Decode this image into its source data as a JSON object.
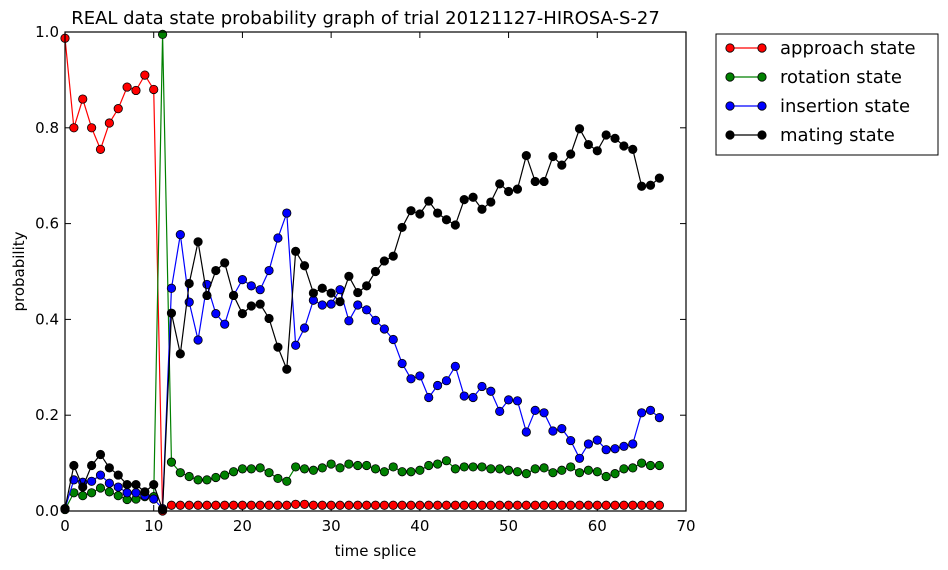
{
  "chart_data": {
    "type": "line",
    "title": "REAL data state probability graph of trial 20121127-HIROSA-S-27",
    "xlabel": "time splice",
    "ylabel": "probability",
    "xlim": [
      0,
      70
    ],
    "ylim": [
      0,
      1
    ],
    "xticks": [
      0,
      10,
      20,
      30,
      40,
      50,
      60,
      70
    ],
    "yticks": [
      0.0,
      0.2,
      0.4,
      0.6,
      0.8,
      1.0
    ],
    "xtick_labels": [
      "0",
      "10",
      "20",
      "30",
      "40",
      "50",
      "60",
      "70"
    ],
    "ytick_labels": [
      "0.0",
      "0.2",
      "0.4",
      "0.6",
      "0.8",
      "1.0"
    ],
    "grid": false,
    "legend_position": "outside-top-right",
    "series": [
      {
        "name": "approach state",
        "color": "#ff0000",
        "x": [
          0,
          1,
          2,
          3,
          4,
          5,
          6,
          7,
          8,
          9,
          10,
          11,
          12,
          13,
          14,
          15,
          16,
          17,
          18,
          19,
          20,
          21,
          22,
          23,
          24,
          25,
          26,
          27,
          28,
          29,
          30,
          31,
          32,
          33,
          34,
          35,
          36,
          37,
          38,
          39,
          40,
          41,
          42,
          43,
          44,
          45,
          46,
          47,
          48,
          49,
          50,
          51,
          52,
          53,
          54,
          55,
          56,
          57,
          58,
          59,
          60,
          61,
          62,
          63,
          64,
          65,
          66,
          67
        ],
        "y": [
          0.987,
          0.8,
          0.86,
          0.8,
          0.755,
          0.81,
          0.84,
          0.885,
          0.878,
          0.91,
          0.88,
          0.0,
          0.012,
          0.012,
          0.012,
          0.012,
          0.012,
          0.012,
          0.012,
          0.012,
          0.012,
          0.012,
          0.012,
          0.012,
          0.012,
          0.012,
          0.014,
          0.014,
          0.012,
          0.012,
          0.012,
          0.012,
          0.012,
          0.012,
          0.012,
          0.012,
          0.012,
          0.012,
          0.012,
          0.012,
          0.012,
          0.012,
          0.012,
          0.012,
          0.012,
          0.012,
          0.012,
          0.012,
          0.012,
          0.012,
          0.012,
          0.012,
          0.012,
          0.012,
          0.012,
          0.012,
          0.012,
          0.012,
          0.012,
          0.012,
          0.012,
          0.012,
          0.012,
          0.012,
          0.012,
          0.012,
          0.012,
          0.012
        ]
      },
      {
        "name": "rotation state",
        "color": "#008000",
        "x": [
          0,
          1,
          2,
          3,
          4,
          5,
          6,
          7,
          8,
          9,
          10,
          11,
          12,
          13,
          14,
          15,
          16,
          17,
          18,
          19,
          20,
          21,
          22,
          23,
          24,
          25,
          26,
          27,
          28,
          29,
          30,
          31,
          32,
          33,
          34,
          35,
          36,
          37,
          38,
          39,
          40,
          41,
          42,
          43,
          44,
          45,
          46,
          47,
          48,
          49,
          50,
          51,
          52,
          53,
          54,
          55,
          56,
          57,
          58,
          59,
          60,
          61,
          62,
          63,
          64,
          65,
          66,
          67
        ],
        "y": [
          0.003,
          0.038,
          0.032,
          0.038,
          0.048,
          0.04,
          0.032,
          0.024,
          0.025,
          0.03,
          0.03,
          0.995,
          0.102,
          0.08,
          0.072,
          0.065,
          0.065,
          0.07,
          0.075,
          0.082,
          0.088,
          0.088,
          0.09,
          0.08,
          0.068,
          0.062,
          0.092,
          0.088,
          0.085,
          0.09,
          0.098,
          0.09,
          0.098,
          0.095,
          0.095,
          0.088,
          0.082,
          0.092,
          0.082,
          0.082,
          0.085,
          0.095,
          0.098,
          0.105,
          0.088,
          0.092,
          0.092,
          0.092,
          0.088,
          0.088,
          0.085,
          0.082,
          0.078,
          0.088,
          0.09,
          0.08,
          0.085,
          0.092,
          0.08,
          0.085,
          0.082,
          0.072,
          0.078,
          0.088,
          0.09,
          0.1,
          0.095,
          0.095
        ]
      },
      {
        "name": "insertion state",
        "color": "#0000ff",
        "x": [
          0,
          1,
          2,
          3,
          4,
          5,
          6,
          7,
          8,
          9,
          10,
          11,
          12,
          13,
          14,
          15,
          16,
          17,
          18,
          19,
          20,
          21,
          22,
          23,
          24,
          25,
          26,
          27,
          28,
          29,
          30,
          31,
          32,
          33,
          34,
          35,
          36,
          37,
          38,
          39,
          40,
          41,
          42,
          43,
          44,
          45,
          46,
          47,
          48,
          49,
          50,
          51,
          52,
          53,
          54,
          55,
          56,
          57,
          58,
          59,
          60,
          61,
          62,
          63,
          64,
          65,
          66,
          67
        ],
        "y": [
          0.005,
          0.065,
          0.06,
          0.062,
          0.075,
          0.058,
          0.05,
          0.038,
          0.038,
          0.032,
          0.025,
          0.005,
          0.465,
          0.577,
          0.436,
          0.357,
          0.473,
          0.412,
          0.39,
          0.45,
          0.483,
          0.47,
          0.462,
          0.502,
          0.57,
          0.622,
          0.346,
          0.382,
          0.44,
          0.43,
          0.432,
          0.462,
          0.397,
          0.43,
          0.42,
          0.398,
          0.38,
          0.358,
          0.308,
          0.276,
          0.282,
          0.237,
          0.262,
          0.272,
          0.302,
          0.24,
          0.237,
          0.26,
          0.25,
          0.208,
          0.232,
          0.23,
          0.165,
          0.21,
          0.205,
          0.167,
          0.172,
          0.147,
          0.11,
          0.14,
          0.148,
          0.128,
          0.13,
          0.135,
          0.14,
          0.205,
          0.21,
          0.195
        ]
      },
      {
        "name": "mating state",
        "color": "#000000",
        "x": [
          0,
          1,
          2,
          3,
          4,
          5,
          6,
          7,
          8,
          9,
          10,
          11,
          12,
          13,
          14,
          15,
          16,
          17,
          18,
          19,
          20,
          21,
          22,
          23,
          24,
          25,
          26,
          27,
          28,
          29,
          30,
          31,
          32,
          33,
          34,
          35,
          36,
          37,
          38,
          39,
          40,
          41,
          42,
          43,
          44,
          45,
          46,
          47,
          48,
          49,
          50,
          51,
          52,
          53,
          54,
          55,
          56,
          57,
          58,
          59,
          60,
          61,
          62,
          63,
          64,
          65,
          66,
          67
        ],
        "y": [
          0.005,
          0.095,
          0.05,
          0.095,
          0.118,
          0.09,
          0.075,
          0.055,
          0.055,
          0.04,
          0.055,
          0.003,
          0.413,
          0.328,
          0.475,
          0.562,
          0.45,
          0.502,
          0.518,
          0.45,
          0.412,
          0.428,
          0.432,
          0.402,
          0.342,
          0.296,
          0.542,
          0.512,
          0.455,
          0.465,
          0.455,
          0.437,
          0.49,
          0.456,
          0.47,
          0.5,
          0.522,
          0.532,
          0.592,
          0.627,
          0.62,
          0.647,
          0.622,
          0.608,
          0.597,
          0.65,
          0.655,
          0.63,
          0.645,
          0.683,
          0.667,
          0.672,
          0.742,
          0.688,
          0.688,
          0.74,
          0.722,
          0.745,
          0.798,
          0.765,
          0.752,
          0.785,
          0.778,
          0.762,
          0.755,
          0.678,
          0.68,
          0.695
        ]
      }
    ]
  }
}
